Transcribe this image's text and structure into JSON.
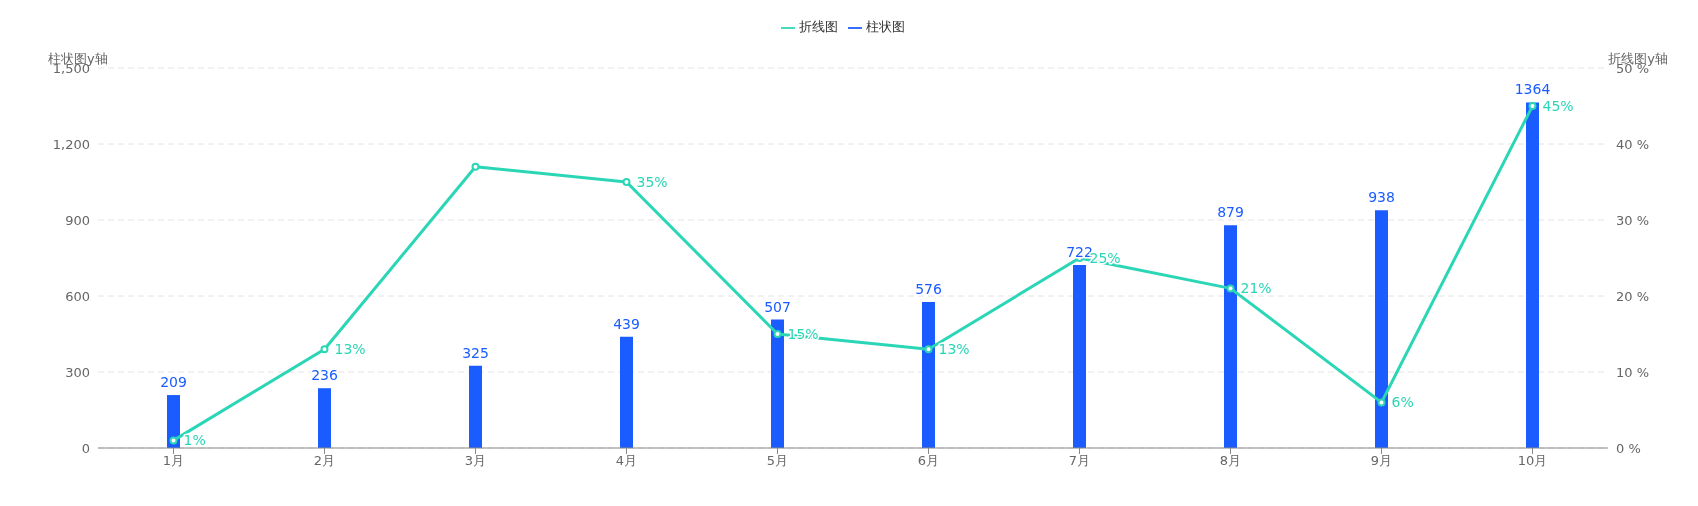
{
  "chart_data": {
    "type": "bar",
    "categories": [
      "1月",
      "2月",
      "3月",
      "4月",
      "5月",
      "6月",
      "7月",
      "8月",
      "9月",
      "10月"
    ],
    "series": [
      {
        "name": "折线图",
        "type": "line",
        "axis": "y2",
        "color": "#2ad6b5",
        "values": [
          1,
          13,
          37,
          35,
          15,
          13,
          25,
          21,
          6,
          45
        ],
        "value_labels": [
          "1%",
          "13%",
          null,
          "35%",
          "15%",
          "13%",
          "25%",
          "21%",
          "6%",
          "45%"
        ]
      },
      {
        "name": "柱状图",
        "color": "#1a5cff",
        "values": [
          209,
          236,
          325,
          439,
          507,
          576,
          722,
          879,
          938,
          1364
        ],
        "value_labels": [
          "209",
          "236",
          "325",
          "439",
          "507",
          "576",
          "722",
          "879",
          "938",
          "1364"
        ]
      }
    ],
    "ylabel": "柱状图y轴",
    "y2label": "折线图y轴",
    "ylim": [
      0,
      1500
    ],
    "yticks": [
      {
        "value": 0,
        "label": "0"
      },
      {
        "value": 300,
        "label": "300"
      },
      {
        "value": 600,
        "label": "600"
      },
      {
        "value": 900,
        "label": "900"
      },
      {
        "value": 1200,
        "label": "1,200"
      },
      {
        "value": 1500,
        "label": "1,500"
      }
    ],
    "y2lim": [
      0,
      50
    ],
    "y2ticks": [
      {
        "value": 0,
        "label": "0 %"
      },
      {
        "value": 10,
        "label": "10 %"
      },
      {
        "value": 20,
        "label": "20 %"
      },
      {
        "value": 30,
        "label": "30 %"
      },
      {
        "value": 40,
        "label": "40 %"
      },
      {
        "value": 50,
        "label": "50 %"
      }
    ],
    "grid": "y",
    "legend": "top",
    "marker": "circle"
  }
}
